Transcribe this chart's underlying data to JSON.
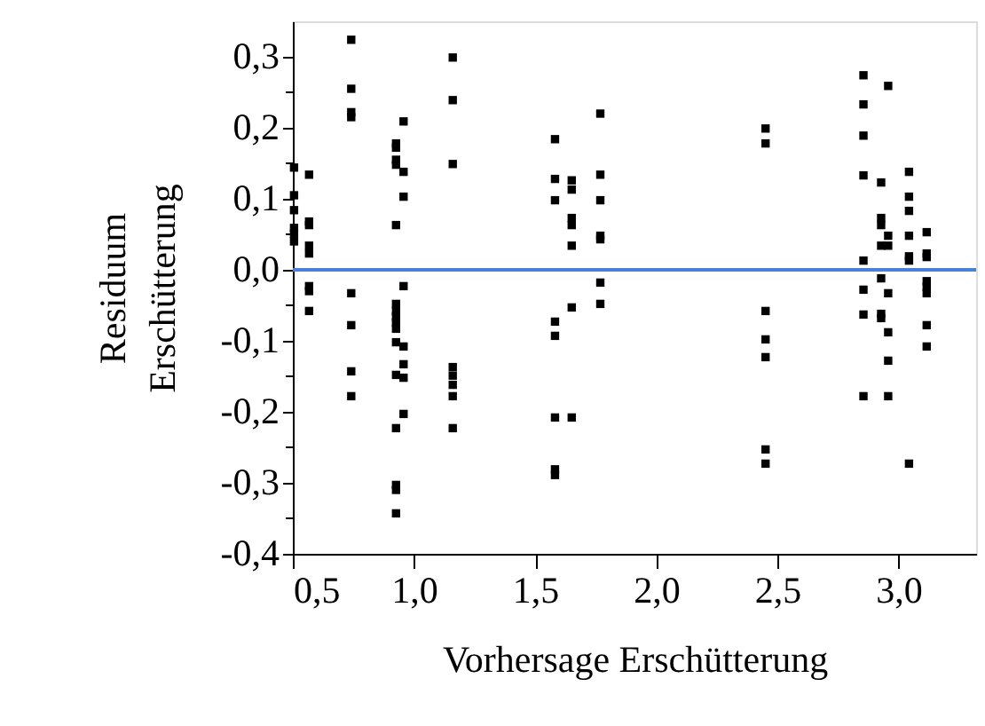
{
  "chart_data": {
    "type": "scatter",
    "xlabel": "Vorhersage Erschütterung",
    "ylabel": "Residuum\nErschütterung",
    "x": [
      0.505,
      0.505,
      0.505,
      0.505,
      0.505,
      0.505,
      0.567,
      0.567,
      0.567,
      0.567,
      0.567,
      0.567,
      0.567,
      0.567,
      0.741,
      0.741,
      0.741,
      0.741,
      0.741,
      0.741,
      0.741,
      0.741,
      0.926,
      0.926,
      0.926,
      0.926,
      0.926,
      0.926,
      0.926,
      0.926,
      0.926,
      0.926,
      0.926,
      0.926,
      0.926,
      0.926,
      0.926,
      0.926,
      0.957,
      0.957,
      0.957,
      0.957,
      0.957,
      0.957,
      0.957,
      0.957,
      1.16,
      1.16,
      1.16,
      1.16,
      1.16,
      1.16,
      1.16,
      1.16,
      1.582,
      1.582,
      1.582,
      1.582,
      1.582,
      1.582,
      1.582,
      1.582,
      1.651,
      1.651,
      1.651,
      1.651,
      1.651,
      1.651,
      1.651,
      1.769,
      1.769,
      1.769,
      1.769,
      1.769,
      1.769,
      1.769,
      2.451,
      2.451,
      2.451,
      2.451,
      2.451,
      2.451,
      2.451,
      2.855,
      2.855,
      2.855,
      2.855,
      2.855,
      2.855,
      2.855,
      2.855,
      2.928,
      2.928,
      2.928,
      2.928,
      2.928,
      2.928,
      2.928,
      2.957,
      2.957,
      2.957,
      2.957,
      2.957,
      2.957,
      2.957,
      3.043,
      3.043,
      3.043,
      3.043,
      3.043,
      3.043,
      3.043,
      3.116,
      3.116,
      3.116,
      3.116,
      3.116,
      3.116,
      3.116,
      3.116
    ],
    "series": [
      {
        "color": "#000000",
        "values": [
          0.144,
          0.105,
          0.084,
          0.059,
          0.051,
          0.04,
          0.134,
          0.068,
          0.063,
          0.034,
          0.023,
          -0.023,
          -0.03,
          -0.058,
          0.324,
          0.255,
          0.222,
          0.215,
          -0.033,
          -0.078,
          -0.143,
          -0.178,
          0.178,
          0.172,
          0.155,
          0.148,
          0.063,
          -0.048,
          -0.058,
          -0.066,
          -0.074,
          -0.083,
          -0.102,
          -0.148,
          -0.223,
          -0.303,
          -0.31,
          -0.343,
          0.209,
          0.138,
          0.103,
          -0.023,
          -0.108,
          -0.133,
          -0.152,
          -0.203,
          0.299,
          0.239,
          0.149,
          -0.137,
          -0.149,
          -0.162,
          -0.178,
          -0.223,
          0.184,
          0.128,
          0.098,
          -0.073,
          -0.093,
          -0.208,
          -0.281,
          -0.289,
          0.126,
          0.113,
          0.073,
          0.063,
          0.034,
          -0.053,
          -0.208,
          0.22,
          0.134,
          0.098,
          0.048,
          0.043,
          -0.018,
          -0.048,
          0.199,
          0.178,
          -0.058,
          -0.098,
          -0.123,
          -0.253,
          -0.273,
          0.274,
          0.233,
          0.189,
          0.133,
          0.013,
          -0.028,
          -0.063,
          -0.178,
          0.123,
          0.073,
          0.063,
          0.034,
          -0.012,
          -0.062,
          -0.068,
          0.259,
          0.048,
          0.034,
          -0.033,
          -0.088,
          -0.128,
          -0.178,
          0.138,
          0.103,
          0.083,
          0.048,
          0.019,
          0.013,
          -0.273,
          0.053,
          0.023,
          0.018,
          -0.016,
          -0.024,
          -0.033,
          -0.078,
          -0.108
        ]
      }
    ],
    "marker": "square",
    "grid": false,
    "xlim": [
      0.5,
      3.32
    ],
    "ylim": [
      -0.4,
      0.35
    ],
    "xticks": [
      {
        "value": 0.5,
        "label": "0,5"
      },
      {
        "value": 1.0,
        "label": "1,0"
      },
      {
        "value": 1.5,
        "label": "1,5"
      },
      {
        "value": 2.0,
        "label": "2,0"
      },
      {
        "value": 2.5,
        "label": "2,5"
      },
      {
        "value": 3.0,
        "label": "3,0"
      }
    ],
    "yticks": [
      {
        "value": -0.4,
        "label": "-0,4"
      },
      {
        "value": -0.35,
        "label": null
      },
      {
        "value": -0.3,
        "label": "-0,3"
      },
      {
        "value": -0.25,
        "label": null
      },
      {
        "value": -0.2,
        "label": "-0,2"
      },
      {
        "value": -0.15,
        "label": null
      },
      {
        "value": -0.1,
        "label": "-0,1"
      },
      {
        "value": -0.05,
        "label": null
      },
      {
        "value": 0.0,
        "label": "0,0"
      },
      {
        "value": 0.05,
        "label": null
      },
      {
        "value": 0.1,
        "label": "0,1"
      },
      {
        "value": 0.15,
        "label": null
      },
      {
        "value": 0.2,
        "label": "0,2"
      },
      {
        "value": 0.25,
        "label": null
      },
      {
        "value": 0.3,
        "label": "0,3"
      }
    ],
    "ref_lines": [
      {
        "axis": "y",
        "value": 0,
        "color": "#4a7fdc"
      }
    ]
  }
}
